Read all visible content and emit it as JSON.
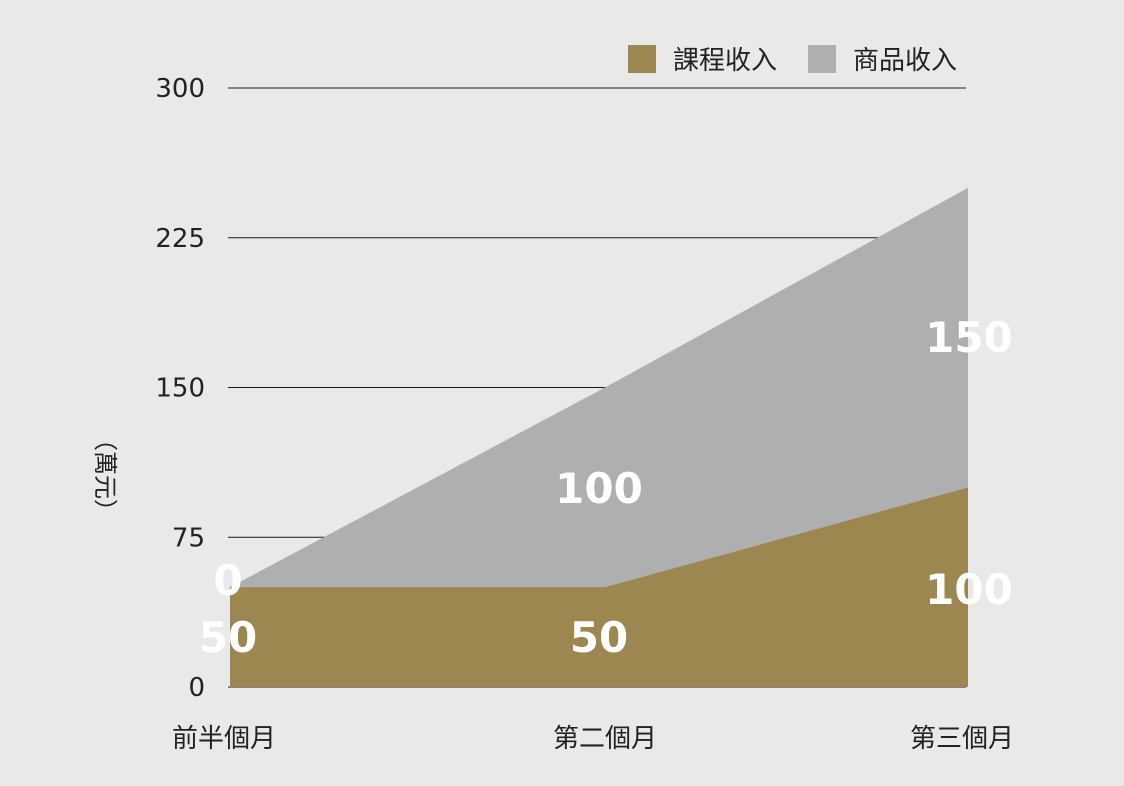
{
  "chart_data": {
    "type": "area",
    "stacked": true,
    "categories": [
      "前半個月",
      "第二個月",
      "第三個月"
    ],
    "ylabel": "（萬元）",
    "ylim": [
      0,
      300
    ],
    "yticks": [
      0,
      75,
      150,
      225,
      300
    ],
    "grid": true,
    "legend_position": "top-right",
    "series": [
      {
        "name": "課程收入",
        "values": [
          50,
          50,
          100
        ],
        "labels": [
          "50",
          "50",
          "100"
        ],
        "color": "#9b874f"
      },
      {
        "name": "商品收入",
        "values": [
          0,
          100,
          150
        ],
        "labels": [
          "0",
          "100",
          "150"
        ],
        "color": "#aeafb0"
      }
    ]
  }
}
